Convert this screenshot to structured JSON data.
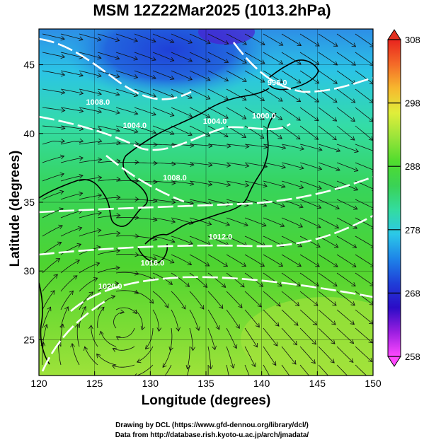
{
  "title": "MSM 12Z22Mar2025 (1013.2hPa)",
  "xlabel": "Longitude (degrees)",
  "ylabel": "Latitude  (degrees)",
  "credit_line1": "Drawing by DCL (https://www.gfd-dennou.org/library/dcl/)",
  "credit_line2": "Data from http://database.rish.kyoto-u.ac.jp/arch/jmadata/",
  "map": {
    "lon_range": [
      120,
      150
    ],
    "lat_range": [
      22.4,
      47.6
    ],
    "lon_ticks": [
      120,
      125,
      130,
      135,
      140,
      145,
      150
    ],
    "lat_ticks": [
      25,
      30,
      35,
      40,
      45
    ],
    "shading_field": "temperature (K)",
    "contour_field": "sea level pressure (hPa)",
    "contour_labels": [
      {
        "text": "996.0",
        "lon": 141.4,
        "lat": 43.5
      },
      {
        "text": "1000.0",
        "lon": 140.2,
        "lat": 41.1
      },
      {
        "text": "1004.0",
        "lon": 135.8,
        "lat": 40.7
      },
      {
        "text": "1004.0",
        "lon": 128.6,
        "lat": 40.4
      },
      {
        "text": "1008.0",
        "lon": 125.3,
        "lat": 42.1
      },
      {
        "text": "1008.0",
        "lon": 132.2,
        "lat": 36.6
      },
      {
        "text": "1012.0",
        "lon": 136.3,
        "lat": 32.3
      },
      {
        "text": "1016.0",
        "lon": 130.2,
        "lat": 30.4
      },
      {
        "text": "1020.0",
        "lon": 126.4,
        "lat": 28.7
      }
    ],
    "cyclonic_center": {
      "lon": 127.5,
      "lat": 26.5
    }
  },
  "colorbar": {
    "range": [
      258,
      308
    ],
    "ticks": [
      258,
      268,
      278,
      288,
      298,
      308
    ],
    "colors": [
      "#ff49ff",
      "#9a1ee0",
      "#2b0cc6",
      "#1f3fd8",
      "#1e84e8",
      "#2bc7e8",
      "#33dca0",
      "#3ad256",
      "#50dc2e",
      "#9ae43a",
      "#e0ee3a",
      "#f7b82e",
      "#f46a28",
      "#e8241e"
    ]
  }
}
